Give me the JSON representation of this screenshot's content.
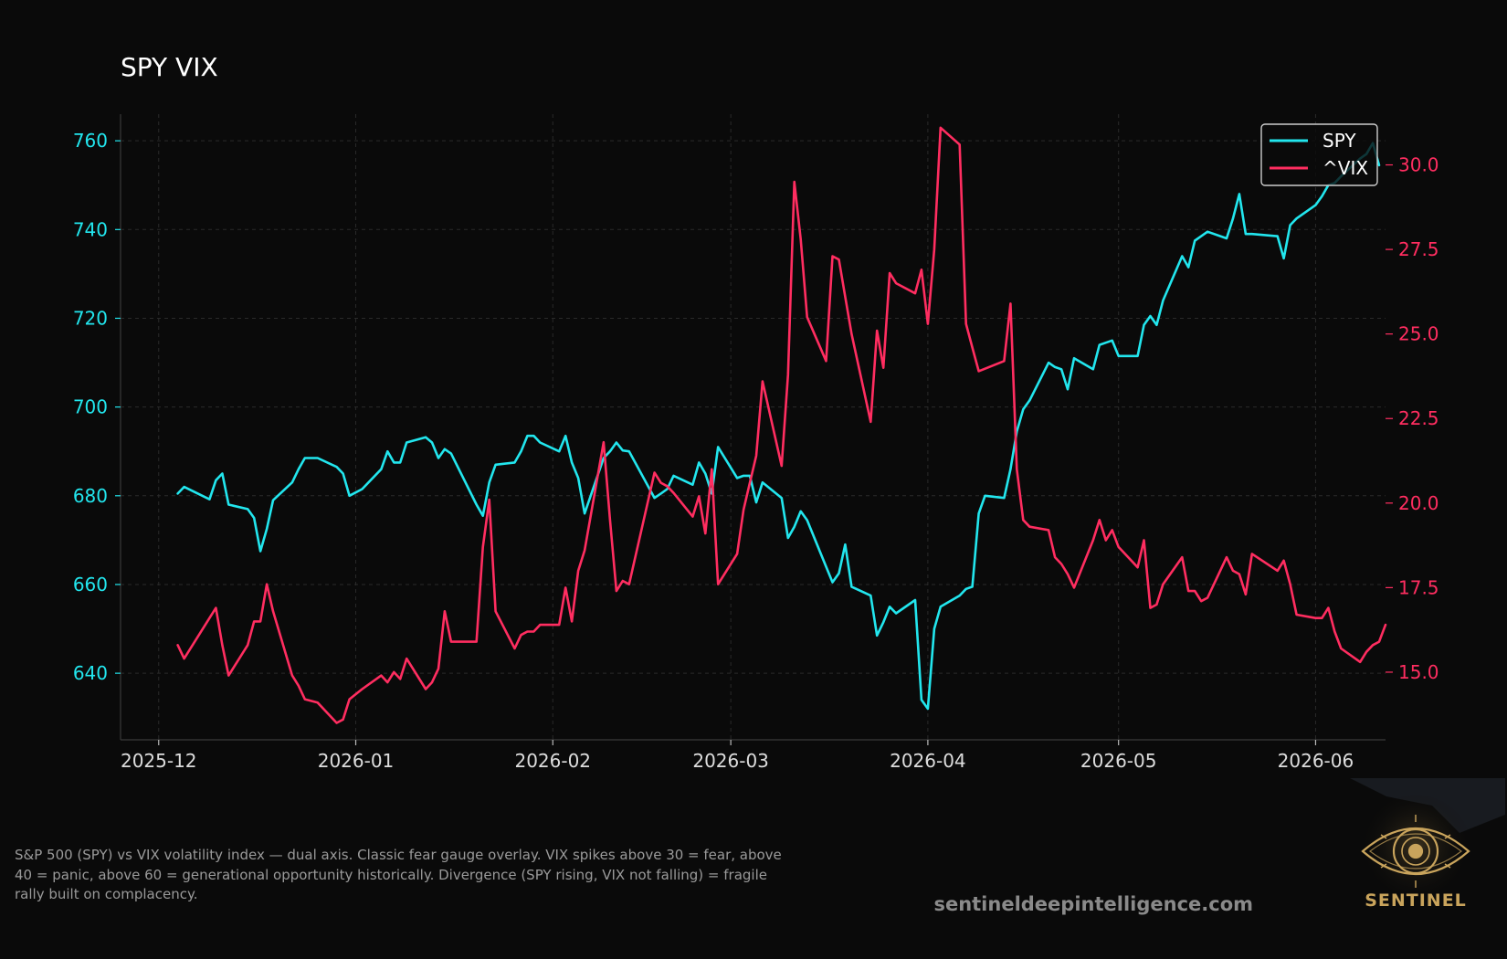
{
  "chart_data": {
    "type": "line",
    "title": "SPY VIX",
    "x_tick_labels": [
      "2025-12",
      "2026-01",
      "2026-02",
      "2026-03",
      "2026-04",
      "2026-05",
      "2026-06"
    ],
    "x_ticks": [
      "2025-12-01",
      "2026-01-01",
      "2026-02-01",
      "2026-03-01",
      "2026-04-01",
      "2026-05-01",
      "2026-06-01"
    ],
    "xlim": [
      "2025-11-25",
      "2026-06-12"
    ],
    "y_left": {
      "ticks": [
        640,
        660,
        680,
        700,
        720,
        740,
        760
      ],
      "tick_labels": [
        "640",
        "660",
        "680",
        "700",
        "720",
        "740",
        "760"
      ],
      "lim": [
        625,
        766
      ],
      "color": "#22e6ee"
    },
    "y_right": {
      "ticks": [
        15,
        17.5,
        20,
        22.5,
        25,
        27.5,
        30
      ],
      "tick_labels": [
        "15.0",
        "17.5",
        "20.0",
        "22.5",
        "25.0",
        "27.5",
        "30.0"
      ],
      "lim": [
        13.0,
        31.5
      ],
      "color": "#ff2d60"
    },
    "grid": true,
    "legend_position": "top-right",
    "series": [
      {
        "name": "SPY",
        "axis": "left",
        "color": "#22e6ee",
        "points": [
          [
            "2025-12-04",
            680.5
          ],
          [
            "2025-12-05",
            682.0
          ],
          [
            "2025-12-09",
            679.2
          ],
          [
            "2025-12-10",
            683.5
          ],
          [
            "2025-12-11",
            685.0
          ],
          [
            "2025-12-12",
            678.0
          ],
          [
            "2025-12-15",
            677.0
          ],
          [
            "2025-12-16",
            675.0
          ],
          [
            "2025-12-17",
            667.5
          ],
          [
            "2025-12-18",
            672.5
          ],
          [
            "2025-12-19",
            679.0
          ],
          [
            "2025-12-22",
            683.0
          ],
          [
            "2025-12-23",
            686.0
          ],
          [
            "2025-12-24",
            688.5
          ],
          [
            "2025-12-26",
            688.5
          ],
          [
            "2025-12-29",
            686.5
          ],
          [
            "2025-12-30",
            685.0
          ],
          [
            "2025-12-31",
            680.0
          ],
          [
            "2026-01-02",
            681.5
          ],
          [
            "2026-01-05",
            686.0
          ],
          [
            "2026-01-06",
            690.0
          ],
          [
            "2026-01-07",
            687.5
          ],
          [
            "2026-01-08",
            687.5
          ],
          [
            "2026-01-09",
            692.0
          ],
          [
            "2026-01-12",
            693.2
          ],
          [
            "2026-01-13",
            692.0
          ],
          [
            "2026-01-14",
            688.5
          ],
          [
            "2026-01-15",
            690.5
          ],
          [
            "2026-01-16",
            689.5
          ],
          [
            "2026-01-20",
            678.0
          ],
          [
            "2026-01-21",
            675.5
          ],
          [
            "2026-01-22",
            683.0
          ],
          [
            "2026-01-23",
            687.0
          ],
          [
            "2026-01-26",
            687.5
          ],
          [
            "2026-01-27",
            690.0
          ],
          [
            "2026-01-28",
            693.5
          ],
          [
            "2026-01-29",
            693.5
          ],
          [
            "2026-01-30",
            692.0
          ],
          [
            "2026-02-02",
            690.0
          ],
          [
            "2026-02-03",
            693.5
          ],
          [
            "2026-02-04",
            687.5
          ],
          [
            "2026-02-05",
            684.0
          ],
          [
            "2026-02-06",
            676.0
          ],
          [
            "2026-02-09",
            688.5
          ],
          [
            "2026-02-10",
            690.0
          ],
          [
            "2026-02-11",
            692.0
          ],
          [
            "2026-02-12",
            690.2
          ],
          [
            "2026-02-13",
            690.0
          ],
          [
            "2026-02-17",
            679.5
          ],
          [
            "2026-02-18",
            680.5
          ],
          [
            "2026-02-19",
            681.5
          ],
          [
            "2026-02-20",
            684.5
          ],
          [
            "2026-02-23",
            682.5
          ],
          [
            "2026-02-24",
            687.5
          ],
          [
            "2026-02-25",
            685.0
          ],
          [
            "2026-02-26",
            680.5
          ],
          [
            "2026-02-27",
            691.0
          ],
          [
            "2026-03-02",
            684.0
          ],
          [
            "2026-03-03",
            684.5
          ],
          [
            "2026-03-04",
            684.5
          ],
          [
            "2026-03-05",
            678.5
          ],
          [
            "2026-03-06",
            683.0
          ],
          [
            "2026-03-09",
            679.5
          ],
          [
            "2026-03-10",
            670.5
          ],
          [
            "2026-03-11",
            673.0
          ],
          [
            "2026-03-12",
            676.5
          ],
          [
            "2026-03-13",
            674.5
          ],
          [
            "2026-03-16",
            664.0
          ],
          [
            "2026-03-17",
            660.5
          ],
          [
            "2026-03-18",
            662.5
          ],
          [
            "2026-03-19",
            669.0
          ],
          [
            "2026-03-20",
            659.5
          ],
          [
            "2026-03-23",
            657.5
          ],
          [
            "2026-03-24",
            648.5
          ],
          [
            "2026-03-25",
            651.5
          ],
          [
            "2026-03-26",
            655.0
          ],
          [
            "2026-03-27",
            653.5
          ],
          [
            "2026-03-30",
            656.5
          ],
          [
            "2026-03-31",
            634.0
          ],
          [
            "2026-04-01",
            632.0
          ],
          [
            "2026-04-02",
            650.0
          ],
          [
            "2026-04-03",
            655.0
          ],
          [
            "2026-04-06",
            657.5
          ],
          [
            "2026-04-07",
            659.0
          ],
          [
            "2026-04-08",
            659.5
          ],
          [
            "2026-04-09",
            676.0
          ],
          [
            "2026-04-10",
            680.0
          ],
          [
            "2026-04-13",
            679.5
          ],
          [
            "2026-04-14",
            686.0
          ],
          [
            "2026-04-15",
            694.5
          ],
          [
            "2026-04-16",
            699.5
          ],
          [
            "2026-04-17",
            701.5
          ],
          [
            "2026-04-20",
            710.0
          ],
          [
            "2026-04-21",
            709.0
          ],
          [
            "2026-04-22",
            708.5
          ],
          [
            "2026-04-23",
            704.0
          ],
          [
            "2026-04-24",
            711.0
          ],
          [
            "2026-04-27",
            708.5
          ],
          [
            "2026-04-28",
            714.0
          ],
          [
            "2026-04-29",
            714.5
          ],
          [
            "2026-04-30",
            715.0
          ],
          [
            "2026-05-01",
            711.5
          ],
          [
            "2026-05-04",
            711.5
          ],
          [
            "2026-05-05",
            718.5
          ],
          [
            "2026-05-06",
            720.5
          ],
          [
            "2026-05-07",
            718.5
          ],
          [
            "2026-05-08",
            724.0
          ],
          [
            "2026-05-11",
            734.0
          ],
          [
            "2026-05-12",
            731.5
          ],
          [
            "2026-05-13",
            737.5
          ],
          [
            "2026-05-14",
            738.5
          ],
          [
            "2026-05-15",
            739.5
          ],
          [
            "2026-05-18",
            738.0
          ],
          [
            "2026-05-19",
            742.5
          ],
          [
            "2026-05-20",
            748.0
          ],
          [
            "2026-05-21",
            739.0
          ],
          [
            "2026-05-22",
            739.0
          ],
          [
            "2026-05-26",
            738.5
          ],
          [
            "2026-05-27",
            733.5
          ],
          [
            "2026-05-28",
            741.0
          ],
          [
            "2026-05-29",
            742.5
          ],
          [
            "2026-06-01",
            745.5
          ],
          [
            "2026-06-02",
            747.5
          ],
          [
            "2026-06-03",
            750.0
          ],
          [
            "2026-06-04",
            750.5
          ],
          [
            "2026-06-05",
            752.0
          ],
          [
            "2026-06-08",
            756.0
          ],
          [
            "2026-06-09",
            757.0
          ],
          [
            "2026-06-10",
            759.5
          ],
          [
            "2026-06-11",
            754.5
          ]
        ]
      },
      {
        "name": "^VIX",
        "axis": "right",
        "color": "#ff2d60",
        "points": [
          [
            "2025-12-04",
            15.8
          ],
          [
            "2025-12-05",
            15.4
          ],
          [
            "2025-12-09",
            16.6
          ],
          [
            "2025-12-10",
            16.9
          ],
          [
            "2025-12-11",
            15.8
          ],
          [
            "2025-12-12",
            14.9
          ],
          [
            "2025-12-15",
            15.8
          ],
          [
            "2025-12-16",
            16.5
          ],
          [
            "2025-12-17",
            16.5
          ],
          [
            "2025-12-18",
            17.6
          ],
          [
            "2025-12-19",
            16.8
          ],
          [
            "2025-12-22",
            14.9
          ],
          [
            "2025-12-23",
            14.6
          ],
          [
            "2025-12-24",
            14.2
          ],
          [
            "2025-12-26",
            14.1
          ],
          [
            "2025-12-29",
            13.5
          ],
          [
            "2025-12-30",
            13.6
          ],
          [
            "2025-12-31",
            14.2
          ],
          [
            "2026-01-02",
            14.5
          ],
          [
            "2026-01-05",
            14.9
          ],
          [
            "2026-01-06",
            14.7
          ],
          [
            "2026-01-07",
            15.0
          ],
          [
            "2026-01-08",
            14.8
          ],
          [
            "2026-01-09",
            15.4
          ],
          [
            "2026-01-12",
            14.5
          ],
          [
            "2026-01-13",
            14.7
          ],
          [
            "2026-01-14",
            15.1
          ],
          [
            "2026-01-15",
            16.8
          ],
          [
            "2026-01-16",
            15.9
          ],
          [
            "2026-01-20",
            15.9
          ],
          [
            "2026-01-21",
            18.7
          ],
          [
            "2026-01-22",
            20.1
          ],
          [
            "2026-01-23",
            16.8
          ],
          [
            "2026-01-26",
            15.7
          ],
          [
            "2026-01-27",
            16.1
          ],
          [
            "2026-01-28",
            16.2
          ],
          [
            "2026-01-29",
            16.2
          ],
          [
            "2026-01-30",
            16.4
          ],
          [
            "2026-02-02",
            16.4
          ],
          [
            "2026-02-03",
            17.5
          ],
          [
            "2026-02-04",
            16.5
          ],
          [
            "2026-02-05",
            18.0
          ],
          [
            "2026-02-06",
            18.6
          ],
          [
            "2026-02-09",
            21.8
          ],
          [
            "2026-02-10",
            19.5
          ],
          [
            "2026-02-11",
            17.4
          ],
          [
            "2026-02-12",
            17.7
          ],
          [
            "2026-02-13",
            17.6
          ],
          [
            "2026-02-17",
            20.9
          ],
          [
            "2026-02-18",
            20.6
          ],
          [
            "2026-02-19",
            20.5
          ],
          [
            "2026-02-20",
            20.3
          ],
          [
            "2026-02-23",
            19.6
          ],
          [
            "2026-02-24",
            20.2
          ],
          [
            "2026-02-25",
            19.1
          ],
          [
            "2026-02-26",
            21.0
          ],
          [
            "2026-02-27",
            17.6
          ],
          [
            "2026-03-02",
            18.5
          ],
          [
            "2026-03-03",
            19.8
          ],
          [
            "2026-03-04",
            20.6
          ],
          [
            "2026-03-05",
            21.4
          ],
          [
            "2026-03-06",
            23.6
          ],
          [
            "2026-03-09",
            21.1
          ],
          [
            "2026-03-10",
            23.8
          ],
          [
            "2026-03-11",
            29.5
          ],
          [
            "2026-03-12",
            27.8
          ],
          [
            "2026-03-13",
            25.5
          ],
          [
            "2026-03-16",
            24.2
          ],
          [
            "2026-03-17",
            27.3
          ],
          [
            "2026-03-18",
            27.2
          ],
          [
            "2026-03-19",
            26.1
          ],
          [
            "2026-03-20",
            25.0
          ],
          [
            "2026-03-23",
            22.4
          ],
          [
            "2026-03-24",
            25.1
          ],
          [
            "2026-03-25",
            24.0
          ],
          [
            "2026-03-26",
            26.8
          ],
          [
            "2026-03-27",
            26.5
          ],
          [
            "2026-03-30",
            26.2
          ],
          [
            "2026-03-31",
            26.9
          ],
          [
            "2026-04-01",
            25.3
          ],
          [
            "2026-04-02",
            27.5
          ],
          [
            "2026-04-03",
            31.1
          ],
          [
            "2026-04-06",
            30.6
          ],
          [
            "2026-04-07",
            25.3
          ],
          [
            "2026-04-08",
            24.6
          ],
          [
            "2026-04-09",
            23.9
          ],
          [
            "2026-04-13",
            24.2
          ],
          [
            "2026-04-14",
            25.9
          ],
          [
            "2026-04-15",
            21.0
          ],
          [
            "2026-04-16",
            19.5
          ],
          [
            "2026-04-17",
            19.3
          ],
          [
            "2026-04-20",
            19.2
          ],
          [
            "2026-04-21",
            18.4
          ],
          [
            "2026-04-22",
            18.2
          ],
          [
            "2026-04-23",
            17.9
          ],
          [
            "2026-04-24",
            17.5
          ],
          [
            "2026-04-27",
            18.9
          ],
          [
            "2026-04-28",
            19.5
          ],
          [
            "2026-04-29",
            18.9
          ],
          [
            "2026-04-30",
            19.2
          ],
          [
            "2026-05-01",
            18.7
          ],
          [
            "2026-05-04",
            18.1
          ],
          [
            "2026-05-05",
            18.9
          ],
          [
            "2026-05-06",
            16.9
          ],
          [
            "2026-05-07",
            17.0
          ],
          [
            "2026-05-08",
            17.6
          ],
          [
            "2026-05-11",
            18.4
          ],
          [
            "2026-05-12",
            17.4
          ],
          [
            "2026-05-13",
            17.4
          ],
          [
            "2026-05-14",
            17.1
          ],
          [
            "2026-05-15",
            17.2
          ],
          [
            "2026-05-18",
            18.4
          ],
          [
            "2026-05-19",
            18.0
          ],
          [
            "2026-05-20",
            17.9
          ],
          [
            "2026-05-21",
            17.3
          ],
          [
            "2026-05-22",
            18.5
          ],
          [
            "2026-05-26",
            18.0
          ],
          [
            "2026-05-27",
            18.3
          ],
          [
            "2026-05-28",
            17.6
          ],
          [
            "2026-05-29",
            16.7
          ],
          [
            "2026-06-01",
            16.6
          ],
          [
            "2026-06-02",
            16.6
          ],
          [
            "2026-06-03",
            16.9
          ],
          [
            "2026-06-04",
            16.2
          ],
          [
            "2026-06-05",
            15.7
          ],
          [
            "2026-06-08",
            15.3
          ],
          [
            "2026-06-09",
            15.6
          ],
          [
            "2026-06-10",
            15.8
          ],
          [
            "2026-06-11",
            15.9
          ],
          [
            "2026-06-12",
            16.4
          ]
        ]
      }
    ]
  },
  "caption": "S&P 500 (SPY) vs VIX volatility index — dual axis. Classic fear gauge overlay. VIX spikes above 30 = fear, above 40 = panic, above 60 = generational opportunity historically. Divergence (SPY rising, VIX not falling) = fragile rally built on complacency.",
  "website": "sentineldeepintelligence.com",
  "logo": {
    "icon": "eye-icon",
    "text": "SENTINEL",
    "color": "#c9a45c"
  }
}
